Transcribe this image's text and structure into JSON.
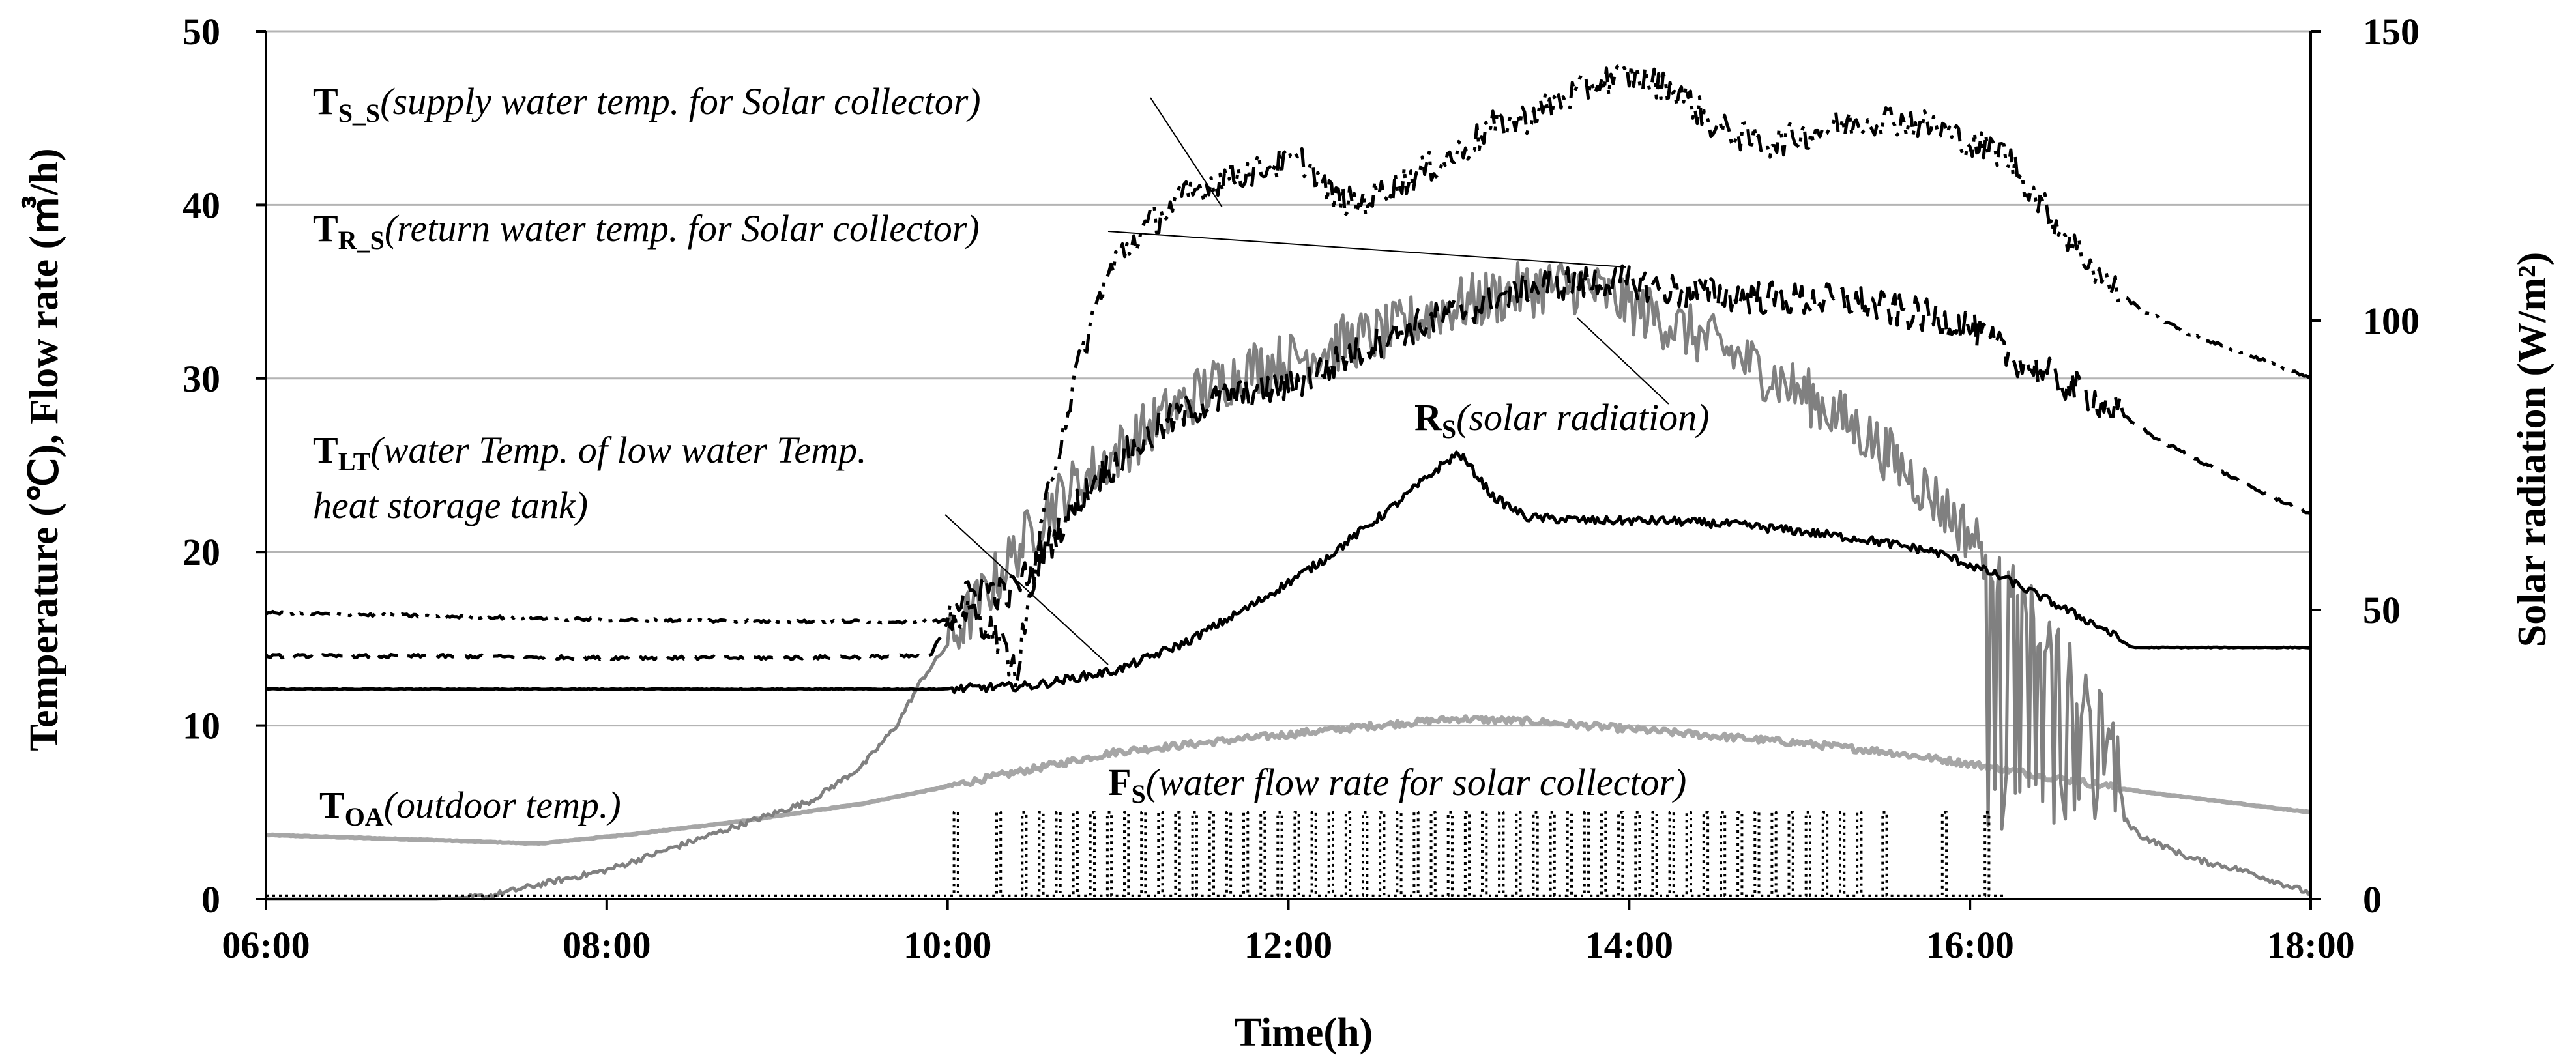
{
  "chart_data": {
    "type": "line",
    "x_axis": {
      "label": "Time(h)",
      "ticks": [
        "06:00",
        "08:00",
        "10:00",
        "12:00",
        "14:00",
        "16:00",
        "18:00"
      ],
      "range_hours": [
        6,
        18
      ]
    },
    "y_left": {
      "label": "Temperature (℃), Flow rate (㎥/h)",
      "ticks": [
        "0",
        "10",
        "20",
        "30",
        "40",
        "50"
      ],
      "range": [
        0,
        50
      ],
      "gridlines": [
        10,
        20,
        30,
        40,
        50
      ]
    },
    "y_right": {
      "label": "Solar radiation (W/m²)",
      "ticks": [
        "0",
        "50",
        "100",
        "150"
      ],
      "range": [
        0,
        150
      ]
    },
    "annotations": [
      {
        "id": "ts",
        "sym": "T",
        "sub": "S_S",
        "desc": "(supply water temp. for Solar collector)"
      },
      {
        "id": "tr",
        "sym": "T",
        "sub": "R_S",
        "desc": "(return water temp. for Solar collector)"
      },
      {
        "id": "tlt",
        "sym": "T",
        "sub": "LT",
        "desc": "(water Temp. of low water Temp.",
        "desc2": "heat storage tank)"
      },
      {
        "id": "rs",
        "sym": "R",
        "sub": "S",
        "desc": "(solar radiation)"
      },
      {
        "id": "toa",
        "sym": "T",
        "sub": "OA",
        "desc": "(outdoor temp.)"
      },
      {
        "id": "fs",
        "sym": "F",
        "sub": "S",
        "desc": "(water flow rate for solar collector)"
      }
    ],
    "series": [
      {
        "name": "T_S_S supply water temp. for Solar collector",
        "axis": "left",
        "color": "#000000",
        "style": "dashdotdot",
        "width": 5,
        "points": [
          [
            6,
            16.5
          ],
          [
            7,
            16.3
          ],
          [
            8,
            16.1
          ],
          [
            9,
            16.0
          ],
          [
            9.8,
            16.0
          ],
          [
            10.0,
            16.0
          ],
          [
            10.15,
            16.5
          ],
          [
            10.3,
            15
          ],
          [
            10.4,
            13
          ],
          [
            10.5,
            18
          ],
          [
            10.6,
            24
          ],
          [
            10.75,
            30
          ],
          [
            10.9,
            35
          ],
          [
            11.0,
            37
          ],
          [
            11.2,
            39
          ],
          [
            11.4,
            40.5
          ],
          [
            11.6,
            41.5
          ],
          [
            11.8,
            42
          ],
          [
            12.0,
            42.5
          ],
          [
            12.1,
            42.5
          ],
          [
            12.25,
            40.5
          ],
          [
            12.4,
            40
          ],
          [
            12.6,
            41
          ],
          [
            12.8,
            42
          ],
          [
            13.0,
            43
          ],
          [
            13.2,
            44.5
          ],
          [
            13.4,
            45
          ],
          [
            13.6,
            46
          ],
          [
            13.8,
            47
          ],
          [
            14.0,
            47.5
          ],
          [
            14.15,
            47
          ],
          [
            14.3,
            46.5
          ],
          [
            14.5,
            44.5
          ],
          [
            14.8,
            43.5
          ],
          [
            15.0,
            44
          ],
          [
            15.2,
            44.5
          ],
          [
            15.5,
            45
          ],
          [
            15.8,
            44.5
          ],
          [
            16.0,
            43.5
          ],
          [
            16.2,
            43
          ],
          [
            16.5,
            39
          ],
          [
            16.8,
            35.5
          ],
          [
            17.0,
            34
          ],
          [
            17.3,
            32.5
          ],
          [
            17.6,
            31.5
          ],
          [
            18.0,
            30
          ]
        ],
        "jitter": 0.9
      },
      {
        "name": "T_R_S return water temp. for Solar collector",
        "axis": "left",
        "color": "#000000",
        "style": "longdash",
        "width": 5,
        "points": [
          [
            6,
            14.0
          ],
          [
            7,
            14.0
          ],
          [
            8,
            13.9
          ],
          [
            9,
            13.9
          ],
          [
            9.9,
            14.0
          ],
          [
            10.05,
            17
          ],
          [
            10.2,
            18
          ],
          [
            10.35,
            17.5
          ],
          [
            10.5,
            19
          ],
          [
            10.7,
            22
          ],
          [
            10.9,
            24.5
          ],
          [
            11.1,
            26
          ],
          [
            11.3,
            27.5
          ],
          [
            11.5,
            28.5
          ],
          [
            11.7,
            29
          ],
          [
            12.0,
            29.5
          ],
          [
            12.3,
            31
          ],
          [
            12.6,
            32.5
          ],
          [
            12.9,
            33.5
          ],
          [
            13.2,
            34.5
          ],
          [
            13.5,
            35.5
          ],
          [
            13.8,
            35.5
          ],
          [
            14.0,
            35.5
          ],
          [
            14.3,
            35
          ],
          [
            14.6,
            34.8
          ],
          [
            15.0,
            34.5
          ],
          [
            15.3,
            34.5
          ],
          [
            15.5,
            34
          ],
          [
            15.8,
            33.5
          ],
          [
            16.0,
            33
          ],
          [
            16.2,
            31.5
          ],
          [
            16.5,
            30
          ],
          [
            16.8,
            28.5
          ],
          [
            17.1,
            26.5
          ],
          [
            17.4,
            25
          ],
          [
            17.7,
            23.5
          ],
          [
            18.0,
            22.2
          ]
        ],
        "jitter": 1.0
      },
      {
        "name": "T_LT water Temp. of low water Temp. heat storage tank",
        "axis": "left",
        "color": "#000000",
        "style": "solid",
        "width": 5,
        "points": [
          [
            6,
            12.1
          ],
          [
            7,
            12.1
          ],
          [
            8,
            12.1
          ],
          [
            9,
            12.1
          ],
          [
            10,
            12.1
          ],
          [
            10.5,
            12.3
          ],
          [
            11.0,
            13.2
          ],
          [
            11.4,
            14.8
          ],
          [
            11.8,
            17
          ],
          [
            12.2,
            19.5
          ],
          [
            12.6,
            22.5
          ],
          [
            12.9,
            25
          ],
          [
            13.0,
            25.7
          ],
          [
            13.1,
            24.5
          ],
          [
            13.2,
            23.2
          ],
          [
            13.4,
            22
          ],
          [
            13.8,
            21.8
          ],
          [
            14.2,
            21.8
          ],
          [
            14.6,
            21.6
          ],
          [
            15.0,
            21.2
          ],
          [
            15.4,
            20.7
          ],
          [
            15.8,
            20
          ],
          [
            16.2,
            18.5
          ],
          [
            16.5,
            17
          ],
          [
            16.8,
            15.5
          ],
          [
            16.95,
            14.5
          ],
          [
            17.5,
            14.5
          ],
          [
            18.0,
            14.5
          ]
        ],
        "jitter": 0.25
      },
      {
        "name": "R_S solar radiation",
        "axis": "right",
        "color": "#808080",
        "style": "solid",
        "width": 5,
        "points": [
          [
            6,
            0
          ],
          [
            7,
            0
          ],
          [
            7.3,
            0.5
          ],
          [
            7.6,
            2.5
          ],
          [
            8,
            5
          ],
          [
            8.5,
            10
          ],
          [
            8.8,
            13
          ],
          [
            9.2,
            17
          ],
          [
            9.5,
            23
          ],
          [
            9.7,
            30
          ],
          [
            9.85,
            38
          ],
          [
            10.0,
            44
          ],
          [
            10.2,
            52
          ],
          [
            10.4,
            60
          ],
          [
            10.6,
            68
          ],
          [
            10.9,
            75
          ],
          [
            11.2,
            82
          ],
          [
            11.5,
            88
          ],
          [
            11.8,
            92
          ],
          [
            12.0,
            93
          ],
          [
            12.3,
            96
          ],
          [
            12.6,
            98
          ],
          [
            12.9,
            102
          ],
          [
            13.2,
            104
          ],
          [
            13.5,
            106
          ],
          [
            13.7,
            106
          ],
          [
            13.9,
            104
          ],
          [
            14.2,
            100
          ],
          [
            14.5,
            96
          ],
          [
            14.8,
            91
          ],
          [
            15.1,
            86
          ],
          [
            15.4,
            80
          ],
          [
            15.7,
            72
          ],
          [
            16.0,
            63
          ],
          [
            16.15,
            58
          ],
          [
            16.3,
            52
          ],
          [
            16.5,
            44
          ],
          [
            16.7,
            34
          ],
          [
            16.85,
            28
          ],
          [
            16.9,
            14
          ],
          [
            17.0,
            11
          ],
          [
            17.3,
            7
          ],
          [
            17.6,
            5
          ],
          [
            18.0,
            1
          ]
        ],
        "jitter": 5
      },
      {
        "name": "T_OA outdoor temp.",
        "axis": "left",
        "color": "#a6a6a6",
        "style": "solid",
        "width": 7,
        "points": [
          [
            6,
            3.7
          ],
          [
            7,
            3.4
          ],
          [
            7.6,
            3.2
          ],
          [
            8.2,
            3.8
          ],
          [
            8.8,
            4.5
          ],
          [
            9.5,
            5.5
          ],
          [
            10,
            6.5
          ],
          [
            10.5,
            7.5
          ],
          [
            11.0,
            8.5
          ],
          [
            11.5,
            9.0
          ],
          [
            12.0,
            9.5
          ],
          [
            12.5,
            10.0
          ],
          [
            13.0,
            10.4
          ],
          [
            13.5,
            10.2
          ],
          [
            14.0,
            9.8
          ],
          [
            14.5,
            9.4
          ],
          [
            15.0,
            9.0
          ],
          [
            15.5,
            8.5
          ],
          [
            16.0,
            7.8
          ],
          [
            16.5,
            7.0
          ],
          [
            17.0,
            6.2
          ],
          [
            17.5,
            5.6
          ],
          [
            18.0,
            5.0
          ]
        ],
        "jitter": 0.2
      },
      {
        "name": "F_S water flow rate for solar collector",
        "axis": "left",
        "color": "#000000",
        "style": "dotted",
        "width": 4,
        "baseline": 0.2,
        "peak": 5.0,
        "pulse_hours": [
          10.05,
          10.3,
          10.45,
          10.55,
          10.65,
          10.75,
          10.85,
          10.95,
          11.05,
          11.15,
          11.25,
          11.35,
          11.45,
          11.55,
          11.65,
          11.75,
          11.85,
          11.95,
          12.05,
          12.15,
          12.25,
          12.35,
          12.45,
          12.55,
          12.65,
          12.75,
          12.85,
          12.95,
          13.05,
          13.15,
          13.25,
          13.35,
          13.45,
          13.55,
          13.65,
          13.75,
          13.85,
          13.95,
          14.05,
          14.15,
          14.25,
          14.35,
          14.45,
          14.55,
          14.65,
          14.75,
          14.85,
          14.95,
          15.05,
          15.15,
          15.25,
          15.35,
          15.5,
          15.85,
          16.1
        ]
      }
    ]
  }
}
